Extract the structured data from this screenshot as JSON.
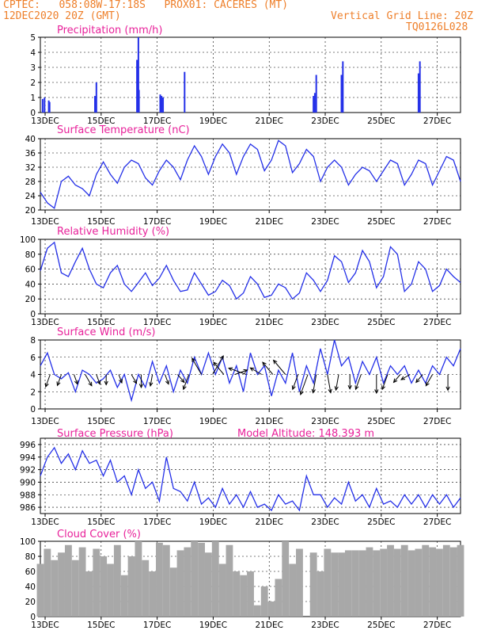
{
  "header": {
    "line1": "CPTEC:   058:08W-17:18S   PROX01: CACERES (MT)",
    "line2": "12DEC2020 20Z (GMT)",
    "grid_note": "Vertical Grid Line: 20Z",
    "code": "TQ0126L028"
  },
  "colors": {
    "line": "#2430e8",
    "cloud": "#a8a8a8",
    "title": "#e8219a",
    "header": "#ee7f2a"
  },
  "x_axis": {
    "start": "12DEC 20Z",
    "end": "27DEC 00Z",
    "tick_labels": [
      "13DEC",
      "15DEC",
      "17DEC",
      "19DEC",
      "21DEC",
      "23DEC",
      "25DEC",
      "27DEC"
    ]
  },
  "chart_data": [
    {
      "type": "bar",
      "title": "Precipitation (mm/h)",
      "ylim": [
        0,
        5
      ],
      "yticks": [
        "0",
        "1",
        "2",
        "3",
        "4",
        "5"
      ],
      "x_days": [
        0.08,
        0.15,
        0.3,
        0.33,
        1.95,
        2.0,
        3.45,
        3.5,
        3.52,
        4.28,
        4.33,
        4.38,
        5.15,
        9.75,
        9.8,
        9.85,
        10.75,
        10.8,
        13.5,
        13.55
      ],
      "values": [
        0.9,
        1.0,
        0.8,
        0.7,
        1.1,
        2.0,
        3.5,
        5.0,
        1.5,
        1.2,
        1.1,
        1.0,
        2.7,
        1.1,
        1.3,
        2.5,
        2.5,
        3.4,
        2.6,
        3.4
      ]
    },
    {
      "type": "line",
      "title": "Surface Temperature (nC)",
      "ylim": [
        20,
        40
      ],
      "yticks": [
        "20",
        "24",
        "28",
        "32",
        "36",
        "40"
      ],
      "x_days": [
        0,
        0.25,
        0.5,
        0.75,
        1,
        1.25,
        1.5,
        1.75,
        2,
        2.25,
        2.5,
        2.75,
        3,
        3.25,
        3.5,
        3.75,
        4,
        4.25,
        4.5,
        4.75,
        5,
        5.25,
        5.5,
        5.75,
        6,
        6.25,
        6.5,
        6.75,
        7,
        7.25,
        7.5,
        7.75,
        8,
        8.25,
        8.5,
        8.75,
        9,
        9.25,
        9.5,
        9.75,
        10,
        10.25,
        10.5,
        10.75,
        11,
        11.25,
        11.5,
        11.75,
        12,
        12.25,
        12.5,
        12.75,
        13,
        13.25,
        13.5,
        13.75,
        14,
        14.25,
        14.5,
        14.75,
        15
      ],
      "values": [
        25,
        22,
        20.5,
        28,
        29.5,
        27,
        26,
        24,
        30,
        33.5,
        30,
        27.5,
        32,
        34,
        33,
        29,
        27,
        31,
        34,
        32,
        28.5,
        34,
        38,
        35,
        30,
        35,
        38.5,
        36,
        30,
        35,
        38.5,
        37,
        31,
        34,
        39.5,
        38,
        30.5,
        33,
        37,
        35,
        28,
        32,
        34,
        32,
        27,
        30,
        32,
        31,
        28,
        31,
        34,
        33,
        27,
        30,
        34,
        33,
        27,
        31,
        35,
        34,
        28
      ]
    },
    {
      "type": "line",
      "title": "Relative Humidity (%)",
      "ylim": [
        0,
        100
      ],
      "yticks": [
        "0",
        "20",
        "40",
        "60",
        "80",
        "100"
      ],
      "x_days": [
        0,
        0.25,
        0.5,
        0.75,
        1,
        1.25,
        1.5,
        1.75,
        2,
        2.25,
        2.5,
        2.75,
        3,
        3.25,
        3.5,
        3.75,
        4,
        4.25,
        4.5,
        4.75,
        5,
        5.25,
        5.5,
        5.75,
        6,
        6.25,
        6.5,
        6.75,
        7,
        7.25,
        7.5,
        7.75,
        8,
        8.25,
        8.5,
        8.75,
        9,
        9.25,
        9.5,
        9.75,
        10,
        10.25,
        10.5,
        10.75,
        11,
        11.25,
        11.5,
        11.75,
        12,
        12.25,
        12.5,
        12.75,
        13,
        13.25,
        13.5,
        13.75,
        14,
        14.25,
        14.5,
        14.75,
        15
      ],
      "values": [
        58,
        88,
        96,
        55,
        50,
        70,
        88,
        60,
        40,
        35,
        55,
        65,
        40,
        30,
        42,
        55,
        38,
        48,
        65,
        45,
        30,
        32,
        55,
        40,
        25,
        30,
        45,
        38,
        20,
        28,
        50,
        40,
        22,
        25,
        40,
        35,
        20,
        28,
        55,
        45,
        30,
        45,
        78,
        70,
        42,
        55,
        85,
        70,
        35,
        50,
        90,
        80,
        30,
        40,
        70,
        60,
        30,
        38,
        60,
        50,
        42
      ]
    },
    {
      "type": "line",
      "title": "Surface Wind (m/s)",
      "ylim": [
        0,
        8
      ],
      "yticks": [
        "0",
        "2",
        "4",
        "6",
        "8"
      ],
      "x_days": [
        0,
        0.25,
        0.5,
        0.75,
        1,
        1.25,
        1.5,
        1.75,
        2,
        2.25,
        2.5,
        2.75,
        3,
        3.25,
        3.5,
        3.75,
        4,
        4.25,
        4.5,
        4.75,
        5,
        5.25,
        5.5,
        5.75,
        6,
        6.25,
        6.5,
        6.75,
        7,
        7.25,
        7.5,
        7.75,
        8,
        8.25,
        8.5,
        8.75,
        9,
        9.25,
        9.5,
        9.75,
        10,
        10.25,
        10.5,
        10.75,
        11,
        11.25,
        11.5,
        11.75,
        12,
        12.25,
        12.5,
        12.75,
        13,
        13.25,
        13.5,
        13.75,
        14,
        14.25,
        14.5,
        14.75,
        15
      ],
      "values": [
        5,
        6.5,
        4,
        3.5,
        4.2,
        2,
        4.5,
        4,
        3,
        3.5,
        4.5,
        2.5,
        4,
        1,
        4,
        2.5,
        5.5,
        3,
        5,
        2,
        4.5,
        3,
        6,
        4,
        6.5,
        4,
        6,
        3,
        5,
        2,
        6.5,
        4,
        5,
        1.5,
        4.5,
        3,
        6.5,
        2,
        5,
        3,
        7,
        4,
        8,
        5,
        6,
        3,
        5.5,
        4,
        6,
        3,
        5,
        4,
        5,
        3,
        4.5,
        3,
        5,
        4,
        6,
        5,
        7
      ],
      "arrows_days": [
        0.35,
        0.75,
        1.2,
        1.6,
        2.0,
        2.35,
        2.8,
        3.25,
        3.6,
        4.0,
        4.45,
        4.9,
        5.3,
        5.75,
        6.15,
        6.55,
        6.95,
        7.35,
        7.9,
        8.3,
        8.75,
        9.2,
        9.55,
        9.85,
        10.25,
        10.65,
        11.05,
        11.45,
        12.0,
        12.4,
        12.85,
        13.2,
        13.65,
        14.0,
        14.55
      ],
      "arrows_speed": [
        3,
        2.5,
        2,
        3,
        2,
        2,
        1.5,
        2,
        3,
        2.5,
        2,
        2,
        4,
        5,
        6,
        4,
        3,
        5,
        3,
        4,
        5,
        4,
        6,
        5,
        5,
        4,
        3.5,
        4,
        5,
        4,
        2,
        2,
        2,
        3,
        4
      ],
      "arrows_dir_deg": [
        200,
        200,
        160,
        150,
        160,
        180,
        160,
        150,
        180,
        190,
        160,
        140,
        200,
        330,
        30,
        320,
        70,
        290,
        300,
        320,
        320,
        200,
        200,
        190,
        170,
        190,
        180,
        200,
        180,
        200,
        220,
        240,
        220,
        210,
        180
      ]
    },
    {
      "type": "line",
      "title": "Surface Pressure (hPa)",
      "annotation": "Model Altitude: 148.393 m",
      "ylim": [
        985,
        997
      ],
      "yticks": [
        "986",
        "988",
        "990",
        "992",
        "994",
        "996"
      ],
      "x_days": [
        0,
        0.25,
        0.5,
        0.75,
        1,
        1.25,
        1.5,
        1.75,
        2,
        2.25,
        2.5,
        2.75,
        3,
        3.25,
        3.5,
        3.75,
        4,
        4.25,
        4.5,
        4.75,
        5,
        5.25,
        5.5,
        5.75,
        6,
        6.25,
        6.5,
        6.75,
        7,
        7.25,
        7.5,
        7.75,
        8,
        8.25,
        8.5,
        8.75,
        9,
        9.25,
        9.5,
        9.75,
        10,
        10.25,
        10.5,
        10.75,
        11,
        11.25,
        11.5,
        11.75,
        12,
        12.25,
        12.5,
        12.75,
        13,
        13.25,
        13.5,
        13.75,
        14,
        14.25,
        14.5,
        14.75,
        15
      ],
      "values": [
        991,
        994,
        995.5,
        993,
        994.5,
        992,
        995,
        993,
        993.5,
        991,
        993.5,
        990,
        991,
        988,
        992,
        989,
        990,
        987,
        994,
        989,
        988.5,
        987,
        990,
        986.5,
        987.5,
        986,
        989,
        986.5,
        988,
        986,
        988.5,
        986,
        986.5,
        985.5,
        988,
        986.5,
        987,
        985.5,
        991,
        988,
        988,
        986,
        987.5,
        986.5,
        990,
        987,
        988,
        986,
        989,
        986.5,
        987,
        986,
        988,
        986.5,
        988,
        986,
        988,
        986.5,
        988,
        986,
        987.5
      ]
    },
    {
      "type": "bar",
      "title": "Cloud Cover (%)",
      "ylim": [
        0,
        100
      ],
      "yticks": [
        "0",
        "20",
        "40",
        "60",
        "80",
        "100"
      ],
      "x_days": [
        0,
        0.25,
        0.5,
        0.75,
        1,
        1.25,
        1.5,
        1.75,
        2,
        2.25,
        2.5,
        2.75,
        3,
        3.25,
        3.5,
        3.75,
        4,
        4.25,
        4.5,
        4.75,
        5,
        5.25,
        5.5,
        5.75,
        6,
        6.25,
        6.5,
        6.75,
        7,
        7.25,
        7.5,
        7.75,
        8,
        8.25,
        8.5,
        8.75,
        9,
        9.25,
        9.5,
        9.75,
        10,
        10.25,
        10.5,
        10.75,
        11,
        11.25,
        11.5,
        11.75,
        12,
        12.25,
        12.5,
        12.75,
        13,
        13.25,
        13.5,
        13.75,
        14,
        14.25,
        14.5,
        14.75,
        15
      ],
      "values": [
        70,
        90,
        75,
        85,
        95,
        75,
        92,
        60,
        90,
        80,
        70,
        95,
        55,
        80,
        100,
        75,
        60,
        98,
        95,
        65,
        88,
        92,
        100,
        98,
        85,
        100,
        70,
        95,
        60,
        55,
        60,
        15,
        40,
        20,
        50,
        100,
        70,
        90,
        0,
        85,
        60,
        90,
        85,
        85,
        88,
        88,
        88,
        92,
        88,
        90,
        95,
        90,
        95,
        88,
        90,
        95,
        92,
        90,
        95,
        92,
        95
      ]
    }
  ]
}
